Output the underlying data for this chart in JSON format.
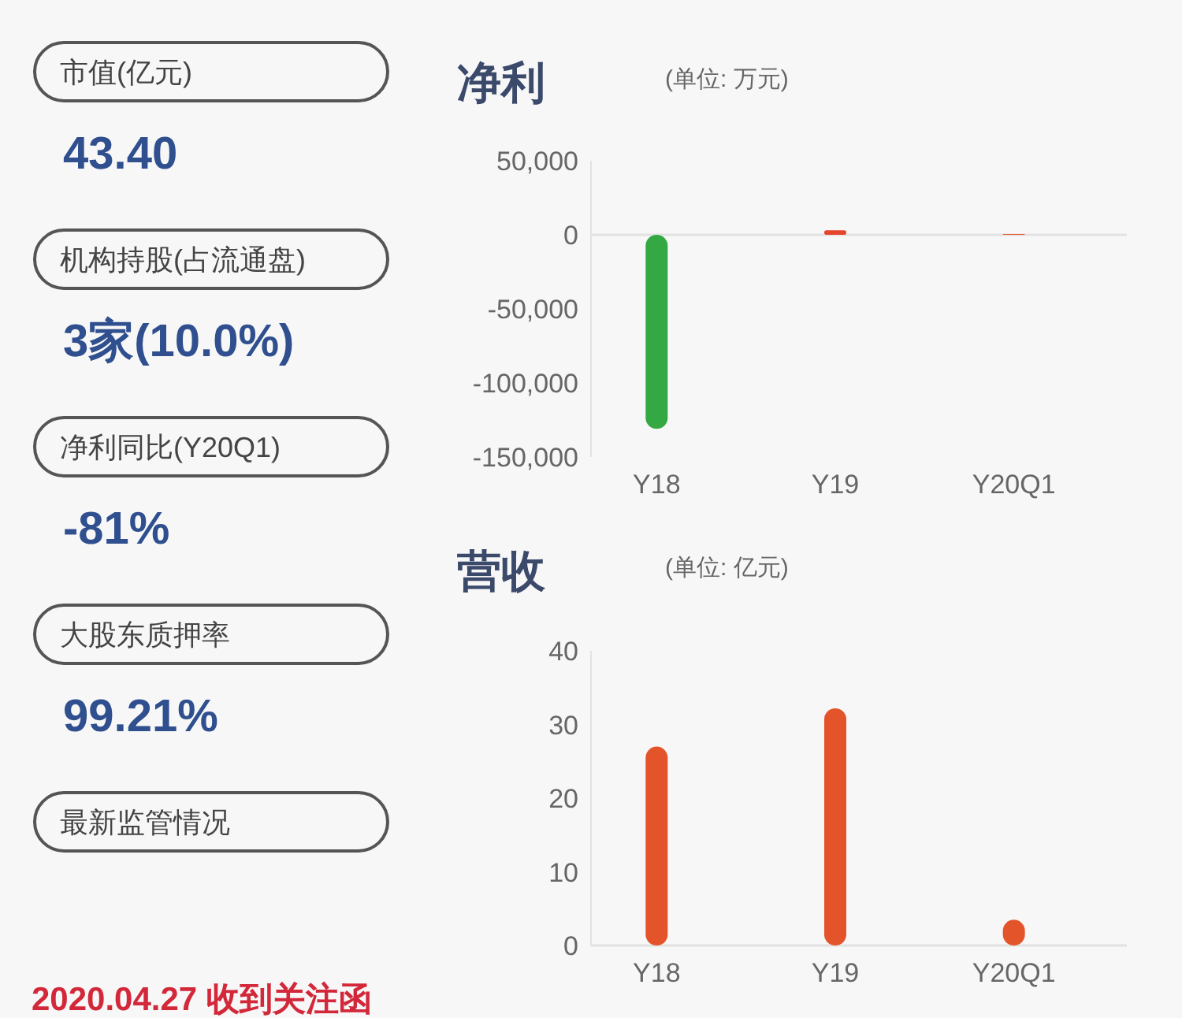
{
  "chart_data": [
    {
      "type": "other",
      "annotations": [
        "市值(亿元)",
        "43.40",
        "机构持股(占流通盘)",
        "3家(10.0%)",
        "净利同比(Y20Q1)",
        "-81%",
        "大股东质押率",
        "99.21%",
        "最新监管情况",
        "2020.04.27 收到关注函"
      ]
    },
    {
      "type": "bar",
      "title": "净利",
      "subtitle": "(单位: 万元)",
      "categories": [
        "Y18",
        "Y19",
        "Y20Q1"
      ],
      "values": [
        -131000,
        3000,
        500
      ],
      "colors": [
        "#34a843",
        "#e5452c",
        "#e8552a"
      ],
      "ylim": [
        -150000,
        50000
      ],
      "yticks": [
        {
          "value": -150000,
          "label": "-150,000"
        },
        {
          "value": -100000,
          "label": "-100,000"
        },
        {
          "value": -50000,
          "label": "-50,000"
        },
        0,
        {
          "value": 50000,
          "label": "50,000"
        }
      ]
    },
    {
      "type": "bar",
      "title": "营收",
      "subtitle": "(单位: 亿元)",
      "categories": [
        "Y18",
        "Y19",
        "Y20Q1"
      ],
      "values": [
        27,
        32.2,
        3.5
      ],
      "color": "#e4542a",
      "ylim": [
        0,
        40
      ],
      "yticks": [
        0,
        10,
        20,
        30,
        40
      ]
    }
  ]
}
